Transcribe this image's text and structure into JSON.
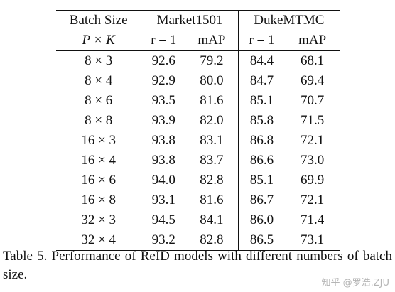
{
  "table": {
    "header": {
      "col0_top": "Batch Size",
      "col0_bottom": "P × K",
      "group1": "Market1501",
      "group2": "DukeMTMC",
      "sub_rank1": "r = 1",
      "sub_map": "mAP"
    },
    "rows": [
      {
        "batch": "8 × 3",
        "m_r1": "92.6",
        "m_map": "79.2",
        "d_r1": "84.4",
        "d_map": "68.1"
      },
      {
        "batch": "8 × 4",
        "m_r1": "92.9",
        "m_map": "80.0",
        "d_r1": "84.7",
        "d_map": "69.4"
      },
      {
        "batch": "8 × 6",
        "m_r1": "93.5",
        "m_map": "81.6",
        "d_r1": "85.1",
        "d_map": "70.7"
      },
      {
        "batch": "8 × 8",
        "m_r1": "93.9",
        "m_map": "82.0",
        "d_r1": "85.8",
        "d_map": "71.5"
      },
      {
        "batch": "16 × 3",
        "m_r1": "93.8",
        "m_map": "83.1",
        "d_r1": "86.8",
        "d_map": "72.1"
      },
      {
        "batch": "16 × 4",
        "m_r1": "93.8",
        "m_map": "83.7",
        "d_r1": "86.6",
        "d_map": "73.0"
      },
      {
        "batch": "16 × 6",
        "m_r1": "94.0",
        "m_map": "82.8",
        "d_r1": "85.1",
        "d_map": "69.9"
      },
      {
        "batch": "16 × 8",
        "m_r1": "93.1",
        "m_map": "81.6",
        "d_r1": "86.7",
        "d_map": "72.1"
      },
      {
        "batch": "32 × 3",
        "m_r1": "94.5",
        "m_map": "84.1",
        "d_r1": "86.0",
        "d_map": "71.4"
      },
      {
        "batch": "32 × 4",
        "m_r1": "93.2",
        "m_map": "82.8",
        "d_r1": "86.5",
        "d_map": "73.1"
      }
    ]
  },
  "caption": "Table 5. Performance of ReID models with different numbers of batch size.",
  "watermark": "知乎 @罗浩.ZJU"
}
